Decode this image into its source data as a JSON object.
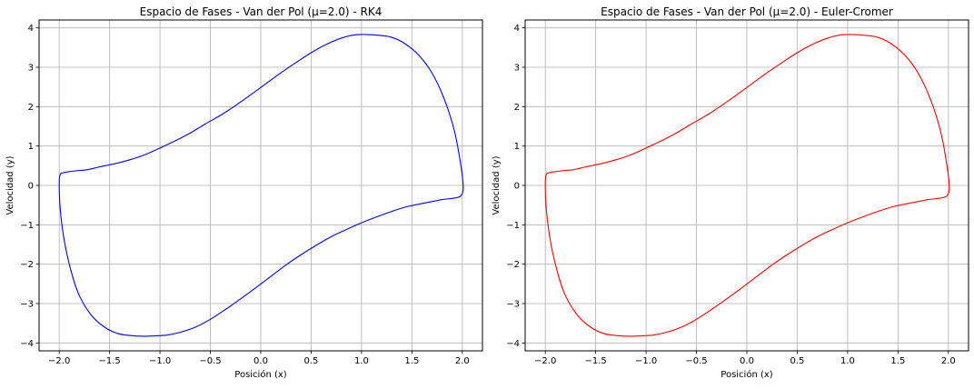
{
  "chart_data": [
    {
      "type": "line",
      "title": "Espacio de Fases - Van der Pol (μ=2.0) - RK4",
      "xlabel": "Posición (x)",
      "ylabel": "Velocidad (y)",
      "xlim": [
        -2.2,
        2.2
      ],
      "ylim": [
        -4.2,
        4.2
      ],
      "xticks": [
        -2.0,
        -1.5,
        -1.0,
        -0.5,
        0.0,
        0.5,
        1.0,
        1.5,
        2.0
      ],
      "xtick_labels": [
        "−2.0",
        "−1.5",
        "−1.0",
        "−0.5",
        "0.0",
        "0.5",
        "1.0",
        "1.5",
        "2.0"
      ],
      "yticks": [
        -4,
        -3,
        -2,
        -1,
        0,
        1,
        2,
        3,
        4
      ],
      "ytick_labels": [
        "−4",
        "−3",
        "−2",
        "−1",
        "0",
        "1",
        "2",
        "3",
        "4"
      ],
      "grid": true,
      "series": [
        {
          "color": "#0000ff",
          "x": [
            2.01,
            1.98,
            1.92,
            1.82,
            1.7,
            1.57,
            1.43,
            1.3,
            1.18,
            1.05,
            0.93,
            0.8,
            0.65,
            0.5,
            0.35,
            0.2,
            0.05,
            -0.1,
            -0.25,
            -0.4,
            -0.55,
            -0.7,
            -0.85,
            -1.0,
            -1.15,
            -1.3,
            -1.45,
            -1.6,
            -1.72,
            -1.8,
            -1.9,
            -1.96,
            -1.99,
            -2.0,
            -1.99,
            -1.95,
            -1.88,
            -1.8,
            -1.68,
            -1.55,
            -1.42,
            -1.3,
            -1.18,
            -1.06,
            -0.93,
            -0.8,
            -0.65,
            -0.5,
            -0.35,
            -0.2,
            -0.05,
            0.1,
            0.25,
            0.4,
            0.55,
            0.7,
            0.85,
            1.0,
            1.15,
            1.3,
            1.45,
            1.6,
            1.72,
            1.8,
            1.9,
            1.96,
            1.99,
            2.01
          ],
          "y": [
            -0.05,
            0.6,
            1.4,
            2.2,
            2.85,
            3.3,
            3.6,
            3.76,
            3.81,
            3.83,
            3.82,
            3.74,
            3.58,
            3.37,
            3.12,
            2.86,
            2.58,
            2.3,
            2.03,
            1.78,
            1.56,
            1.33,
            1.13,
            0.95,
            0.78,
            0.65,
            0.55,
            0.47,
            0.4,
            0.38,
            0.35,
            0.32,
            0.28,
            0.05,
            -0.6,
            -1.4,
            -2.2,
            -2.8,
            -3.3,
            -3.6,
            -3.76,
            -3.81,
            -3.83,
            -3.82,
            -3.8,
            -3.73,
            -3.6,
            -3.4,
            -3.15,
            -2.88,
            -2.6,
            -2.31,
            -2.02,
            -1.76,
            -1.52,
            -1.3,
            -1.12,
            -0.95,
            -0.8,
            -0.66,
            -0.54,
            -0.46,
            -0.4,
            -0.36,
            -0.33,
            -0.3,
            -0.25,
            -0.05
          ]
        }
      ]
    },
    {
      "type": "line",
      "title": "Espacio de Fases - Van der Pol (μ=2.0) - Euler-Cromer",
      "xlabel": "Posición (x)",
      "ylabel": "Velocidad (y)",
      "xlim": [
        -2.2,
        2.2
      ],
      "ylim": [
        -4.2,
        4.2
      ],
      "xticks": [
        -2.0,
        -1.5,
        -1.0,
        -0.5,
        0.0,
        0.5,
        1.0,
        1.5,
        2.0
      ],
      "xtick_labels": [
        "−2.0",
        "−1.5",
        "−1.0",
        "−0.5",
        "0.0",
        "0.5",
        "1.0",
        "1.5",
        "2.0"
      ],
      "yticks": [
        -4,
        -3,
        -2,
        -1,
        0,
        1,
        2,
        3,
        4
      ],
      "ytick_labels": [
        "−4",
        "−3",
        "−2",
        "−1",
        "0",
        "1",
        "2",
        "3",
        "4"
      ],
      "grid": true,
      "series": [
        {
          "color": "#ff0000",
          "x": [
            2.01,
            1.98,
            1.92,
            1.82,
            1.7,
            1.57,
            1.43,
            1.3,
            1.18,
            1.05,
            0.93,
            0.8,
            0.65,
            0.5,
            0.35,
            0.2,
            0.05,
            -0.1,
            -0.25,
            -0.4,
            -0.55,
            -0.7,
            -0.85,
            -1.0,
            -1.15,
            -1.3,
            -1.45,
            -1.6,
            -1.72,
            -1.8,
            -1.9,
            -1.96,
            -1.99,
            -2.0,
            -1.99,
            -1.95,
            -1.88,
            -1.8,
            -1.68,
            -1.55,
            -1.42,
            -1.3,
            -1.18,
            -1.06,
            -0.93,
            -0.8,
            -0.65,
            -0.5,
            -0.35,
            -0.2,
            -0.05,
            0.1,
            0.25,
            0.4,
            0.55,
            0.7,
            0.85,
            1.0,
            1.15,
            1.3,
            1.45,
            1.6,
            1.72,
            1.8,
            1.9,
            1.96,
            1.99,
            2.01
          ],
          "y": [
            -0.05,
            0.6,
            1.4,
            2.2,
            2.85,
            3.3,
            3.6,
            3.76,
            3.81,
            3.83,
            3.82,
            3.74,
            3.58,
            3.37,
            3.12,
            2.86,
            2.58,
            2.3,
            2.03,
            1.78,
            1.56,
            1.33,
            1.13,
            0.95,
            0.78,
            0.65,
            0.55,
            0.47,
            0.4,
            0.38,
            0.35,
            0.32,
            0.28,
            0.05,
            -0.6,
            -1.4,
            -2.2,
            -2.8,
            -3.3,
            -3.6,
            -3.76,
            -3.81,
            -3.83,
            -3.82,
            -3.8,
            -3.73,
            -3.6,
            -3.4,
            -3.15,
            -2.88,
            -2.6,
            -2.31,
            -2.02,
            -1.76,
            -1.52,
            -1.3,
            -1.12,
            -0.95,
            -0.8,
            -0.66,
            -0.54,
            -0.46,
            -0.4,
            -0.36,
            -0.33,
            -0.3,
            -0.25,
            -0.05
          ]
        }
      ]
    }
  ]
}
